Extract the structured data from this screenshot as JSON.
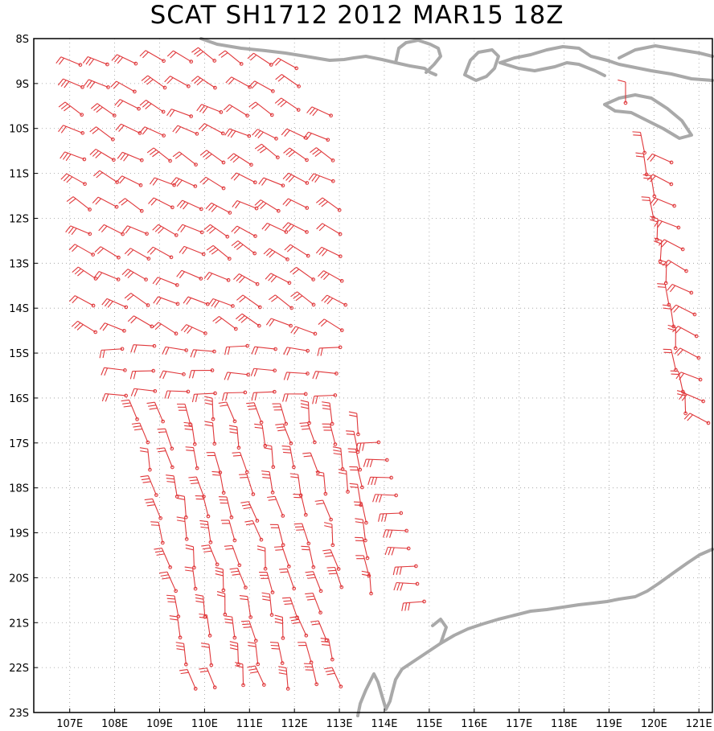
{
  "title": "SCAT SH1712 2012 MAR15 18Z",
  "map": {
    "lat_labels": [
      "8S",
      "9S",
      "10S",
      "11S",
      "12S",
      "13S",
      "14S",
      "15S",
      "16S",
      "17S",
      "18S",
      "19S",
      "20S",
      "21S",
      "22S",
      "23S"
    ],
    "lon_labels": [
      "107E",
      "108E",
      "109E",
      "110E",
      "111E",
      "112E",
      "113E",
      "114E",
      "115E",
      "116E",
      "117E",
      "118E",
      "119E",
      "120E",
      "121E"
    ],
    "lon_range": [
      106.2,
      121.3
    ],
    "lat_range": [
      -23,
      -8
    ],
    "grid": "dotted",
    "colors": {
      "barbs": "#e0383b",
      "coast": "#a9a9a9",
      "grid": "#9a9a9a",
      "frame": "#000000"
    }
  }
}
